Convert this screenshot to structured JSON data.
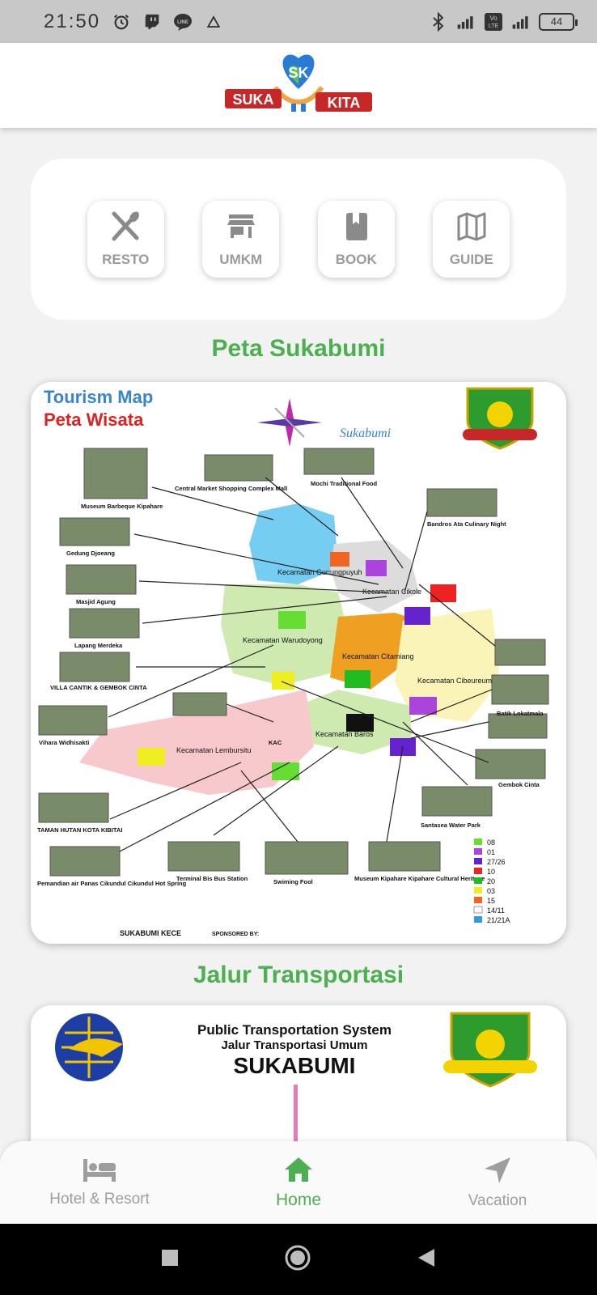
{
  "status": {
    "time": "21:50",
    "battery": "44"
  },
  "app": {
    "logo_left": "SUKA",
    "logo_right": "KITA",
    "logo_badge": "SK"
  },
  "menu": [
    {
      "label": "RESTO",
      "icon": "utensils-icon"
    },
    {
      "label": "UMKM",
      "icon": "store-icon"
    },
    {
      "label": "BOOK",
      "icon": "book-icon"
    },
    {
      "label": "GUIDE",
      "icon": "map-icon"
    }
  ],
  "sections": {
    "map_title": "Peta Sukabumi",
    "transport_title": "Jalur Transportasi"
  },
  "map": {
    "title_en": "Tourism Map",
    "title_id": "Peta Wisata",
    "brand": "Sukabumi",
    "districts": [
      "Kecamatan Gunungpuyuh",
      "Kecamatan Cikole",
      "Kecamatan Warudoyong",
      "Kecamatan Citamiang",
      "Kecamatan Cibeureum",
      "Kecamatan Baros",
      "Kecamatan Lembursitu"
    ],
    "places": [
      "Museum Barbeque Kipahare",
      "Central Market Shopping Complex Mall",
      "Mochi Traditional Food",
      "Bandros Ata Culinary Night",
      "Gedung Djoeang",
      "Masjid Agung",
      "Lapang Merdeka",
      "VILLA CANTIK & GEMBOK CINTA",
      "Vihara Widhisakti",
      "KAC",
      "TAMAN HUTAN KOTA KIBITAI",
      "Pemandian air Panas Cikundul Cikundul Hot Spring",
      "Terminal Bis Bus Station",
      "Swiming Fool",
      "Museum Kipahare Kipahare Cultural Heritage",
      "Santasea Water Park",
      "Gembok Cinta",
      "Batik Lokatmala"
    ],
    "legend": [
      {
        "code": "08",
        "color": "#66dd33"
      },
      {
        "code": "01",
        "color": "#aa44dd"
      },
      {
        "code": "27/26",
        "color": "#6622cc"
      },
      {
        "code": "10",
        "color": "#ee2222"
      },
      {
        "code": "20",
        "color": "#22bb22"
      },
      {
        "code": "03",
        "color": "#eeee22"
      },
      {
        "code": "15",
        "color": "#ee6622"
      },
      {
        "code": "14/11",
        "color": "#ffffff"
      },
      {
        "code": "21/21A",
        "color": "#3399dd"
      }
    ],
    "footer_left": "SUKABUMI KECE",
    "footer_right": "SPONSORED BY:"
  },
  "transport": {
    "line1": "Public Transportation System",
    "line2": "Jalur Transportasi Umum",
    "city": "SUKABUMI"
  },
  "bottom_nav": [
    {
      "label": "Hotel & Resort",
      "icon": "bed-icon",
      "active": false
    },
    {
      "label": "Home",
      "icon": "home-icon",
      "active": true
    },
    {
      "label": "Vacation",
      "icon": "navigation-icon",
      "active": false
    }
  ]
}
